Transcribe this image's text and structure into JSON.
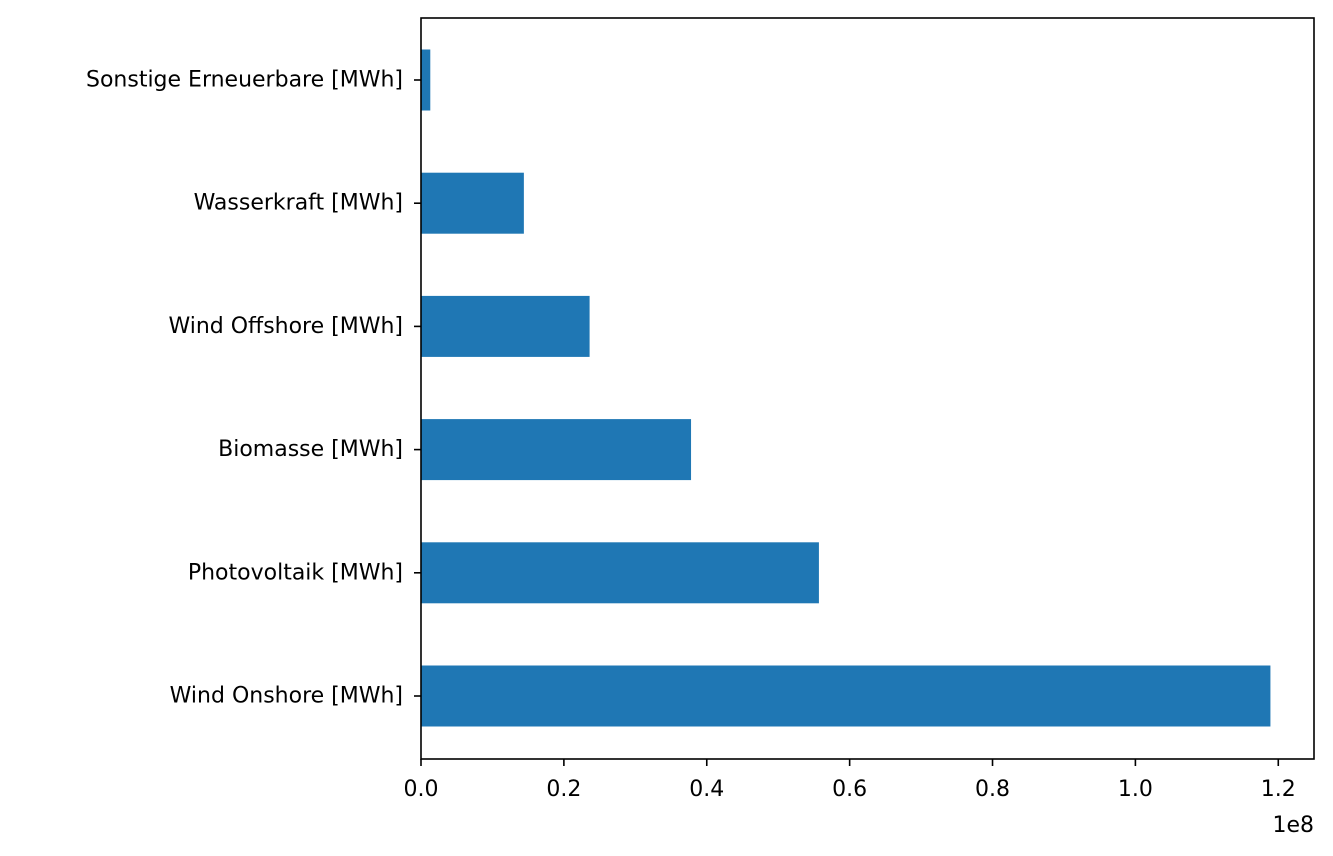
{
  "chart_data": {
    "type": "bar",
    "orientation": "horizontal",
    "categories": [
      "Wind Onshore [MWh]",
      "Photovoltaik [MWh]",
      "Biomasse [MWh]",
      "Wind Offshore [MWh]",
      "Wasserkraft [MWh]",
      "Sonstige Erneuerbare [MWh]"
    ],
    "values": [
      118900000,
      55700000,
      37800000,
      23600000,
      14400000,
      1300000
    ],
    "title": "",
    "xlabel": "",
    "ylabel": "",
    "xlim": [
      0,
      125000000
    ],
    "x_ticks": [
      0,
      20000000,
      40000000,
      60000000,
      80000000,
      100000000,
      120000000
    ],
    "x_tick_labels": [
      "0.0",
      "0.2",
      "0.4",
      "0.6",
      "0.8",
      "1.0",
      "1.2"
    ],
    "x_offset_label": "1e8",
    "bar_color": "#1f77b4",
    "grid": false,
    "legend": "none"
  }
}
